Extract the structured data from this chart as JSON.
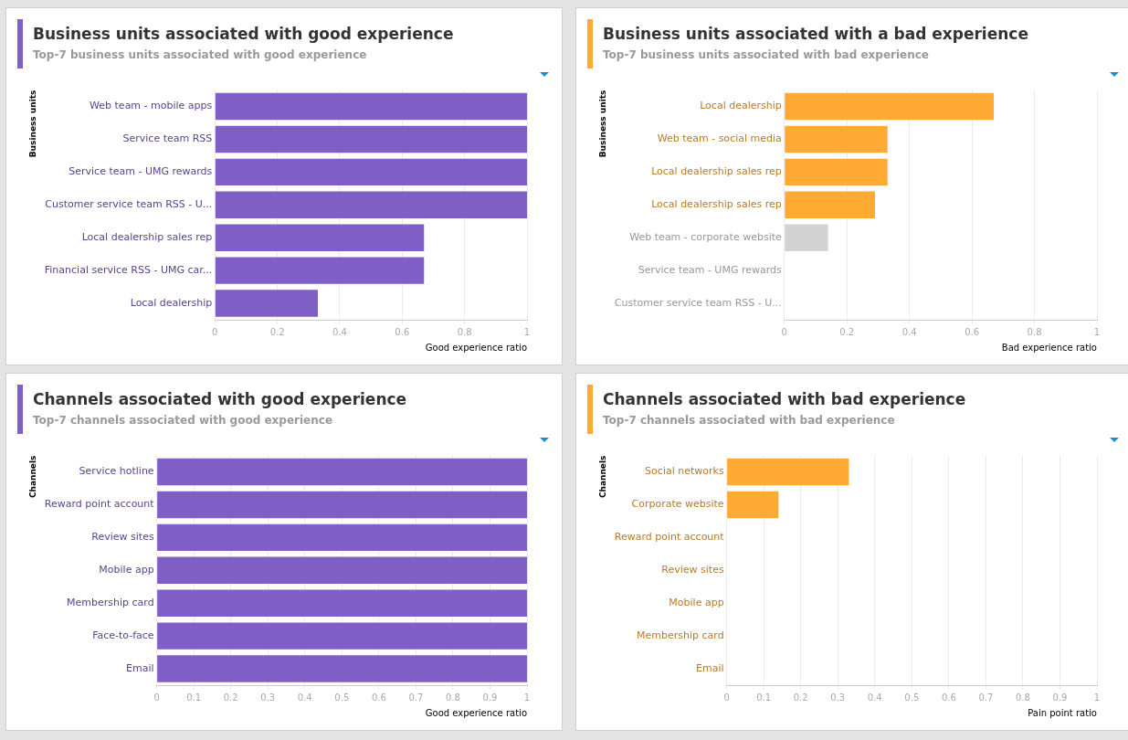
{
  "chart_data": [
    {
      "type": "bar",
      "orientation": "horizontal",
      "title": "Business units associated with good experience",
      "subtitle": "Top-7 business units associated with good experience",
      "ylabel": "Business units",
      "xlabel": "Good experience ratio",
      "categories": [
        "Web team - mobile apps",
        "Service team RSS",
        "Service team - UMG rewards",
        "Customer service team RSS - U...",
        "Local dealership sales rep",
        "Financial service RSS - UMG car...",
        "Local dealership"
      ],
      "values": [
        1,
        1,
        1,
        1,
        0.67,
        0.67,
        0.33
      ],
      "color": "#7f5fc6",
      "xlim": [
        0,
        1
      ],
      "xticks": [
        0,
        0.2,
        0.4,
        0.6,
        0.8,
        1
      ],
      "grid": "x"
    },
    {
      "type": "bar",
      "orientation": "horizontal",
      "title": "Business units associated with a bad experience",
      "subtitle": "Top-7 business units associated with bad experience",
      "ylabel": "Business units",
      "xlabel": "Bad experience ratio",
      "categories": [
        "Local dealership",
        "Web team - social media",
        "Local dealership sales rep",
        "Local dealership sales rep",
        "Web team - corporate website",
        "Service team - UMG rewards",
        "Customer service team RSS - U..."
      ],
      "values": [
        0.67,
        0.33,
        0.33,
        0.29,
        0.14,
        0,
        0
      ],
      "colors": [
        "#ffab33",
        "#ffab33",
        "#ffab33",
        "#ffab33",
        "#d3d3d3",
        "#d3d3d3",
        "#d3d3d3"
      ],
      "xlim": [
        0,
        1
      ],
      "xticks": [
        0,
        0.2,
        0.4,
        0.6,
        0.8,
        1
      ],
      "grid": "x"
    },
    {
      "type": "bar",
      "orientation": "horizontal",
      "title": "Channels associated with good experience",
      "subtitle": "Top-7 channels associated with good experience",
      "ylabel": "Channels",
      "xlabel": "Good experience ratio",
      "categories": [
        "Service hotline",
        "Reward point account",
        "Review sites",
        "Mobile app",
        "Membership card",
        "Face-to-face",
        "Email"
      ],
      "values": [
        1,
        1,
        1,
        1,
        1,
        1,
        1
      ],
      "color": "#7f5fc6",
      "xlim": [
        0,
        1
      ],
      "xticks": [
        0,
        0.1,
        0.2,
        0.3,
        0.4,
        0.5,
        0.6,
        0.7,
        0.8,
        0.9,
        1
      ],
      "grid": "x"
    },
    {
      "type": "bar",
      "orientation": "horizontal",
      "title": "Channels associated with bad experience",
      "subtitle": "Top-7 channels associated with bad experience",
      "ylabel": "Channels",
      "xlabel": "Pain point ratio",
      "categories": [
        "Social networks",
        "Corporate website",
        "Reward point account",
        "Review sites",
        "Mobile app",
        "Membership card",
        "Email"
      ],
      "values": [
        0.33,
        0.14,
        0,
        0,
        0,
        0,
        0
      ],
      "color": "#ffab33",
      "xlim": [
        0,
        1
      ],
      "xticks": [
        0,
        0.1,
        0.2,
        0.3,
        0.4,
        0.5,
        0.6,
        0.7,
        0.8,
        0.9,
        1
      ],
      "grid": "x"
    }
  ]
}
